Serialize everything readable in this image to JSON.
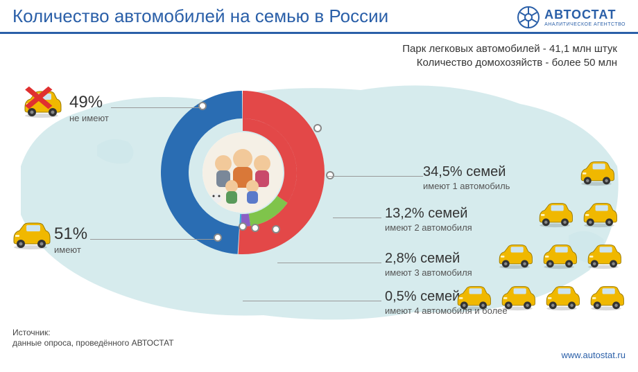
{
  "header": {
    "title": "Количество автомобилей на семью в России",
    "logo_main": "АВТОСТАТ",
    "logo_sub": "АНАЛИТИЧЕСКОЕ АГЕНТСТВО"
  },
  "top_text": {
    "line1": "Парк легковых автомобилей - 41,1 млн штук",
    "line2": "Количество домохозяйств - более 50 млн"
  },
  "chart": {
    "type": "nested-donut",
    "background_color": "#ffffff",
    "map_color": "#cfe8ea",
    "outer_ring": {
      "segments": [
        {
          "key": "no_car",
          "value": 49,
          "color": "#2a6db3",
          "label_pct": "49%",
          "label_desc": "не имеют",
          "icon": "car-crossed"
        },
        {
          "key": "has_car",
          "value": 51,
          "color": "#e34848",
          "label_pct": "51%",
          "label_desc": "имеют",
          "icon": "car"
        }
      ],
      "inner_radius": 78,
      "outer_radius": 118
    },
    "inner_ring": {
      "segments": [
        {
          "key": "one_car",
          "value": 34.5,
          "color": "#e34848",
          "label_pct": "34,5% семей",
          "label_desc": "имеют 1 автомобиль",
          "car_count": 1
        },
        {
          "key": "two_car",
          "value": 13.2,
          "color": "#7fc44b",
          "label_pct": "13,2% семей",
          "label_desc": "имеют 2 автомобиля",
          "car_count": 2
        },
        {
          "key": "three_car",
          "value": 2.8,
          "color": "#8a5fc4",
          "label_pct": "2,8% семей",
          "label_desc": "имеют 3 автомобиля",
          "car_count": 3
        },
        {
          "key": "four_car",
          "value": 0.5,
          "color": "#3aa8d8",
          "label_pct": "0,5% семей",
          "label_desc": "имеют 4 автомобиля и более",
          "car_count": 4
        }
      ],
      "remainder_color": "transparent",
      "inner_radius": 60,
      "outer_radius": 78
    },
    "car_icon_color": "#f0b800",
    "leader_line_color": "#999999",
    "title_fontsize": 26,
    "pct_fontsize": 24,
    "desc_fontsize": 13
  },
  "source": {
    "label": "Источник:",
    "text": "данные опроса, проведённого АВТОСТАТ"
  },
  "url": "www.autostat.ru"
}
